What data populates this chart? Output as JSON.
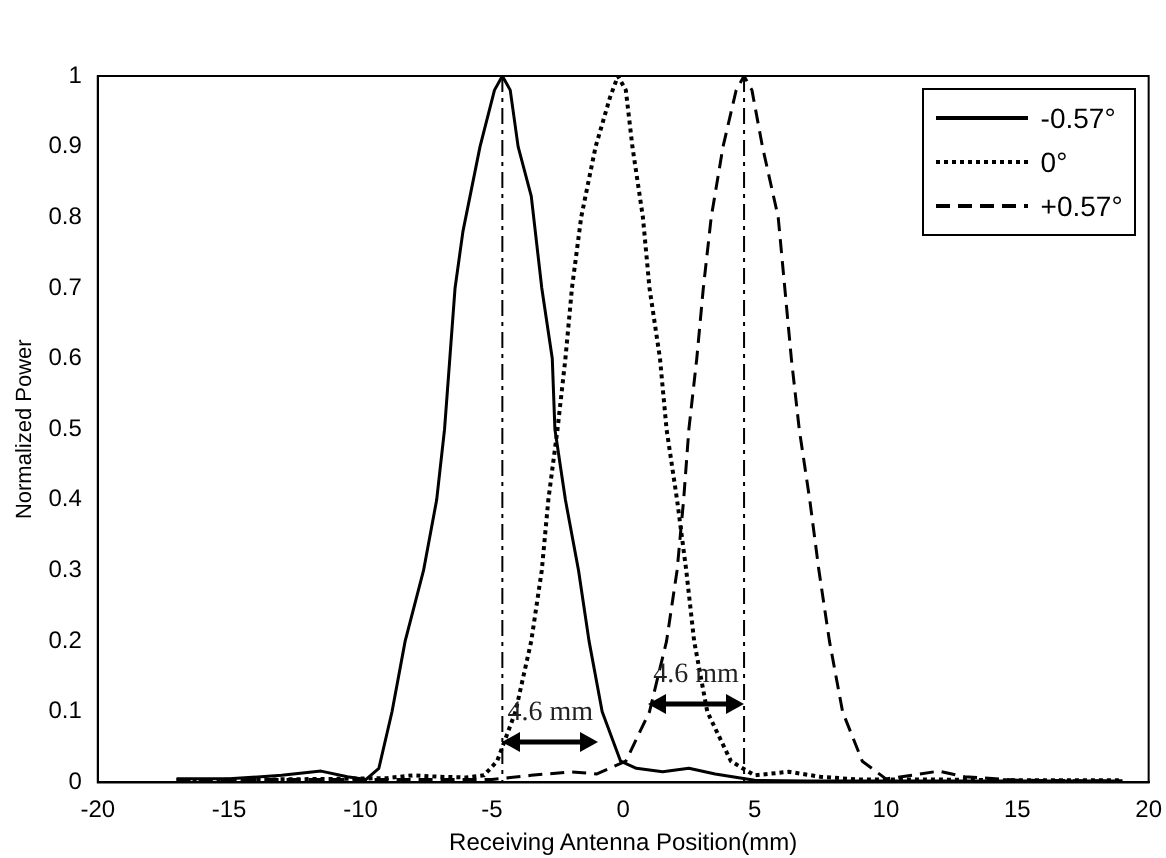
{
  "chart_data": {
    "type": "line",
    "xlabel": "Receiving Antenna Position(mm)",
    "ylabel": "Normalized Power",
    "xlim": [
      -20,
      20
    ],
    "xticks": [
      -20,
      -15,
      -10,
      -5,
      0,
      5,
      10,
      15,
      20
    ],
    "ylim": [
      0,
      1
    ],
    "yticks": [
      0,
      0.1,
      0.2,
      0.3,
      0.4,
      0.5,
      0.6,
      0.7,
      0.8,
      0.9,
      1
    ],
    "grid": false,
    "legend": "top right",
    "marker": "none",
    "series": [
      {
        "name": "-0.57°",
        "color": "#000000",
        "line_style": "solid",
        "x": [
          -17,
          -15,
          -13,
          -11.5,
          -10.5,
          -9.8,
          -9.3,
          -8.8,
          -8.3,
          -7.6,
          -7.1,
          -6.8,
          -6.6,
          -6.4,
          -6.1,
          -5.45,
          -4.9,
          -4.6,
          -4.3,
          -4.0,
          -3.5,
          -3.1,
          -2.7,
          -2.6,
          -2.2,
          -1.7,
          -1.3,
          -0.8,
          -0.1,
          0.5,
          1.5,
          2.5,
          3.5,
          5,
          7,
          10,
          14,
          19
        ],
        "values": [
          0.005,
          0.005,
          0.01,
          0.016,
          0.008,
          0.004,
          0.02,
          0.1,
          0.2,
          0.3,
          0.4,
          0.5,
          0.6,
          0.7,
          0.78,
          0.9,
          0.98,
          1.0,
          0.98,
          0.9,
          0.83,
          0.7,
          0.6,
          0.5,
          0.4,
          0.3,
          0.2,
          0.1,
          0.03,
          0.02,
          0.015,
          0.02,
          0.012,
          0.003,
          0.002,
          0.002,
          0.002,
          0.002
        ]
      },
      {
        "name": "0°",
        "color": "#000000",
        "line_style": "dotted",
        "x": [
          -17,
          -14,
          -11,
          -9,
          -8,
          -7,
          -6,
          -5.3,
          -4.8,
          -4.1,
          -3.5,
          -3.1,
          -2.85,
          -2.5,
          -2.2,
          -1.95,
          -1.6,
          -1.05,
          -0.5,
          -0.2,
          0.1,
          0.35,
          0.75,
          1.0,
          1.4,
          1.65,
          2.05,
          2.4,
          2.7,
          3.2,
          4.1,
          5,
          6.3,
          7.5,
          9,
          12,
          15,
          19
        ],
        "values": [
          0.003,
          0.004,
          0.005,
          0.006,
          0.01,
          0.008,
          0.007,
          0.01,
          0.03,
          0.1,
          0.2,
          0.3,
          0.4,
          0.5,
          0.6,
          0.7,
          0.8,
          0.9,
          0.97,
          1.0,
          0.98,
          0.9,
          0.8,
          0.7,
          0.6,
          0.5,
          0.4,
          0.3,
          0.2,
          0.1,
          0.03,
          0.01,
          0.015,
          0.008,
          0.004,
          0.004,
          0.003,
          0.003
        ]
      },
      {
        "name": "+0.57°",
        "color": "#000000",
        "line_style": "dashed",
        "x": [
          -17,
          -12,
          -8,
          -5,
          -3.5,
          -2,
          -1,
          0.1,
          1.0,
          1.65,
          2.05,
          2.3,
          2.5,
          2.8,
          3.05,
          3.35,
          3.8,
          4.3,
          4.6,
          4.9,
          5.3,
          5.9,
          6.15,
          6.4,
          6.7,
          7.1,
          7.45,
          7.85,
          8.35,
          9.1,
          10,
          11,
          12,
          13,
          15,
          19
        ],
        "values": [
          0.004,
          0.004,
          0.004,
          0.004,
          0.01,
          0.015,
          0.012,
          0.03,
          0.1,
          0.2,
          0.3,
          0.4,
          0.5,
          0.6,
          0.7,
          0.8,
          0.9,
          0.98,
          1.0,
          0.98,
          0.9,
          0.8,
          0.7,
          0.6,
          0.5,
          0.4,
          0.3,
          0.2,
          0.1,
          0.03,
          0.005,
          0.01,
          0.016,
          0.008,
          0.003,
          0.002
        ]
      }
    ],
    "ref_lines": [
      {
        "axis": "x",
        "value": -4.6,
        "color": "#000000"
      },
      {
        "axis": "x",
        "value": 4.6,
        "color": "#000000"
      }
    ],
    "annotations": [
      "4.6 mm",
      "4.6 mm"
    ]
  }
}
